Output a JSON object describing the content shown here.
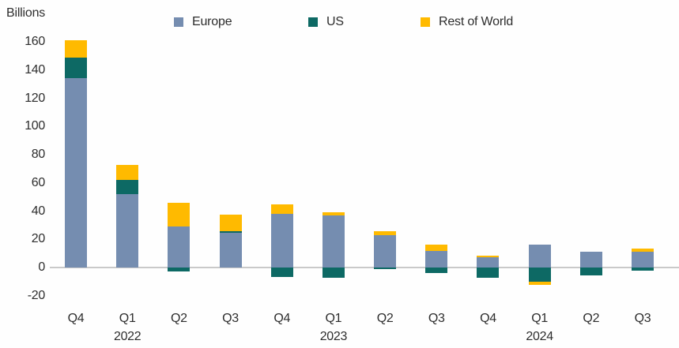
{
  "chart_data": {
    "type": "bar",
    "stacked": true,
    "title": "",
    "ylabel": "Billions",
    "xlabel": "",
    "unit": "billions",
    "categories": [
      "Q4",
      "Q1",
      "Q2",
      "Q3",
      "Q4",
      "Q1",
      "Q2",
      "Q3",
      "Q4",
      "Q1",
      "Q2",
      "Q3"
    ],
    "year_labels": [
      {
        "category_index": 1,
        "label": "2022"
      },
      {
        "category_index": 5,
        "label": "2023"
      },
      {
        "category_index": 9,
        "label": "2024"
      }
    ],
    "series": [
      {
        "name": "Europe",
        "color": "#758DB0",
        "values": [
          134,
          52,
          29,
          24.5,
          38,
          37,
          23,
          12,
          7.5,
          16.5,
          11,
          11
        ]
      },
      {
        "name": "US",
        "color": "#0D6964",
        "values": [
          15,
          10,
          -3,
          1,
          -6.5,
          -7.5,
          -1,
          -4,
          -7,
          -10,
          -5.5,
          -2.5
        ]
      },
      {
        "name": "Rest of World",
        "color": "#FFBA00",
        "values": [
          12,
          10.5,
          17,
          12,
          6.5,
          2,
          2.5,
          4,
          1,
          -2.5,
          0,
          2.5
        ]
      }
    ],
    "ylim": [
      -20,
      160
    ],
    "ytick_step": 20,
    "grid": false,
    "legend_position": "top",
    "axis_line_color": "#c9c9c9",
    "text_color": "#2d2d2d"
  }
}
